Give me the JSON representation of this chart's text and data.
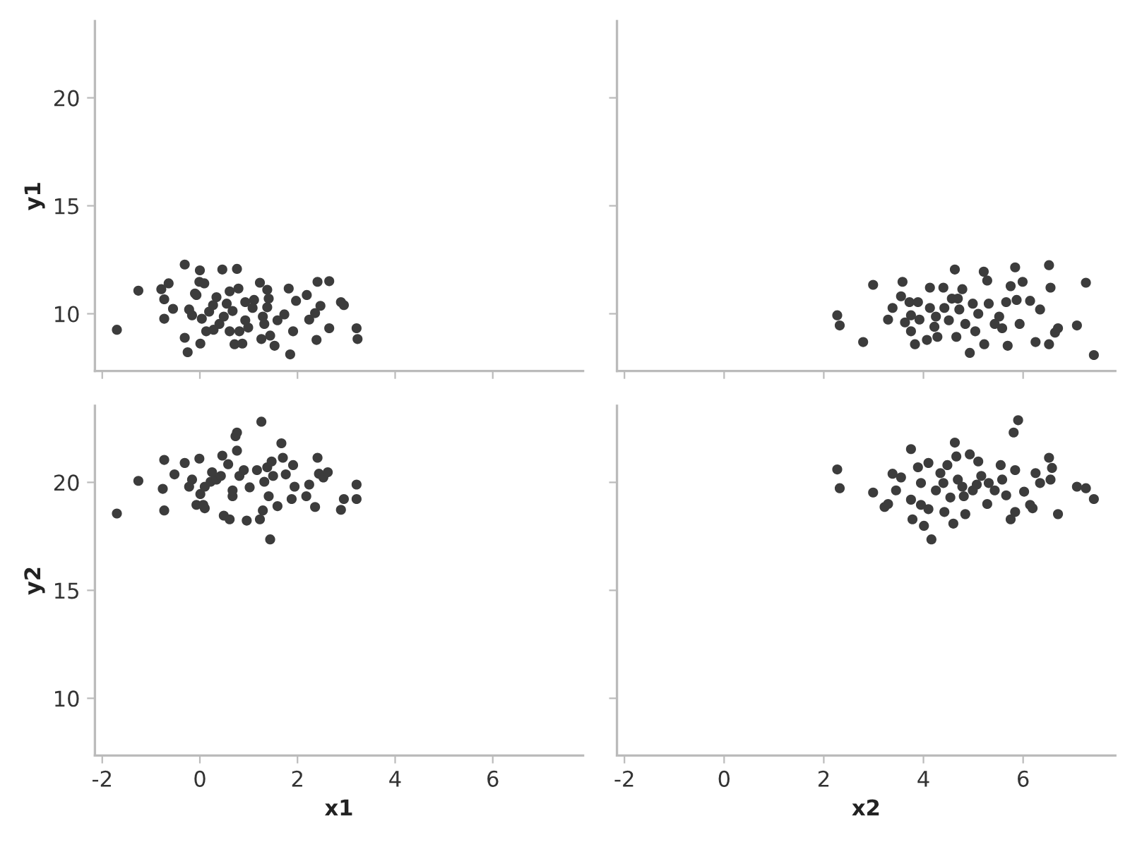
{
  "chart_data": [
    {
      "type": "scatter",
      "ylabel": "y1",
      "xlim": [
        -2.15,
        7.85
      ],
      "ylim": [
        7.35,
        23.55
      ],
      "xticks": [
        -2,
        0,
        2,
        4,
        6
      ],
      "yticks": [
        10,
        15,
        20
      ],
      "tick_labels": "y",
      "grid": false,
      "marker": "circle",
      "series": [
        {
          "color": "#3c3c3c",
          "x": [
            -1.7,
            -1.26,
            -0.79,
            -0.73,
            -0.64,
            -0.55,
            -0.73,
            -0.31,
            -0.25,
            -0.31,
            -0.16,
            0,
            -0.07,
            -0.01,
            0.09,
            0.04,
            0.01,
            0.13,
            0.19,
            0.27,
            0.34,
            0.46,
            0.4,
            0.49,
            0.55,
            0.61,
            0.67,
            0.71,
            0.76,
            0.79,
            0.87,
            0.81,
            0.93,
            0.99,
            0.93,
            1.11,
            1.23,
            1.29,
            1.26,
            1.38,
            1.41,
            1.38,
            1.44,
            1.53,
            1.59,
            1.73,
            1.82,
            1.85,
            1.91,
            1.97,
            2.19,
            2.24,
            2.36,
            2.39,
            2.41,
            2.47,
            2.65,
            2.65,
            2.89,
            2.95,
            3.21,
            3.23,
            1.32,
            1.08,
            0.61,
            0.28,
            -0.22,
            -0.1
          ],
          "values": [
            9.26,
            11.07,
            11.14,
            10.67,
            11.41,
            10.23,
            9.77,
            12.28,
            8.22,
            8.89,
            9.93,
            12.01,
            10.87,
            11.48,
            11.41,
            9.77,
            8.62,
            9.19,
            10.1,
            10.4,
            10.77,
            12.05,
            9.53,
            9.87,
            10.47,
            11.04,
            10.13,
            8.59,
            12.08,
            11.17,
            8.62,
            9.19,
            9.7,
            9.36,
            10.54,
            10.64,
            11.44,
            9.87,
            8.83,
            11.11,
            10.7,
            10.3,
            8.99,
            8.52,
            9.7,
            9.97,
            11.17,
            8.12,
            9.19,
            10.6,
            10.87,
            9.73,
            10.03,
            8.79,
            11.48,
            10.37,
            11.51,
            9.33,
            10.54,
            10.4,
            9.33,
            8.83,
            9.53,
            10.27,
            9.19,
            9.26,
            10.2,
            10.94
          ]
        }
      ]
    },
    {
      "type": "scatter",
      "xlim": [
        -2.15,
        7.85
      ],
      "ylim": [
        7.35,
        23.55
      ],
      "xticks": [
        -2,
        0,
        2,
        4,
        6
      ],
      "yticks": [
        10,
        15,
        20
      ],
      "tick_labels": false,
      "grid": false,
      "marker": "circle",
      "series": [
        {
          "color": "#3c3c3c",
          "x": [
            2.27,
            2.32,
            2.79,
            2.99,
            3.29,
            3.38,
            3.58,
            3.55,
            3.72,
            3.75,
            3.75,
            3.83,
            3.89,
            3.92,
            4.07,
            4.13,
            4.13,
            4.22,
            4.28,
            4.4,
            4.42,
            4.51,
            4.57,
            4.63,
            4.66,
            4.72,
            4.78,
            4.84,
            4.93,
            4.99,
            5.04,
            5.1,
            5.21,
            5.22,
            5.28,
            5.31,
            5.43,
            5.52,
            5.58,
            5.66,
            5.69,
            5.75,
            5.84,
            5.87,
            5.93,
            5.99,
            6.14,
            6.25,
            6.34,
            6.52,
            6.52,
            6.55,
            6.64,
            6.7,
            7.08,
            7.26,
            7.42,
            4.69,
            4.25,
            3.63
          ],
          "values": [
            9.93,
            9.46,
            8.69,
            11.34,
            9.73,
            10.27,
            11.48,
            10.81,
            10.54,
            9.93,
            9.19,
            8.59,
            10.54,
            9.73,
            8.79,
            11.21,
            10.27,
            9.4,
            8.93,
            11.21,
            10.27,
            9.7,
            10.7,
            12.05,
            8.93,
            10.2,
            11.14,
            9.53,
            8.19,
            10.47,
            9.19,
            10.0,
            11.95,
            8.59,
            11.54,
            10.47,
            9.53,
            9.87,
            9.33,
            10.54,
            8.52,
            11.28,
            12.15,
            10.64,
            9.53,
            11.48,
            10.6,
            8.69,
            10.2,
            12.25,
            8.59,
            11.21,
            9.13,
            9.33,
            9.46,
            11.44,
            8.09,
            10.7,
            9.87,
            9.6
          ]
        }
      ]
    },
    {
      "type": "scatter",
      "xlabel": "x1",
      "ylabel": "y2",
      "xlim": [
        -2.15,
        7.85
      ],
      "ylim": [
        7.35,
        23.55
      ],
      "xticks": [
        -2,
        0,
        2,
        4,
        6
      ],
      "yticks": [
        10,
        15,
        20
      ],
      "grid": false,
      "marker": "circle",
      "series": [
        {
          "color": "#3c3c3c",
          "x": [
            -1.7,
            -1.26,
            -0.76,
            -0.73,
            -0.73,
            -0.52,
            -0.31,
            -0.22,
            -0.16,
            -0.07,
            -0.01,
            0.01,
            0.1,
            0.1,
            0.22,
            0.34,
            0.43,
            0.46,
            0.49,
            0.58,
            0.61,
            0.67,
            0.67,
            0.73,
            0.76,
            0.76,
            0.81,
            0.9,
            0.96,
            1.02,
            1.17,
            1.26,
            1.23,
            1.29,
            1.32,
            1.38,
            1.41,
            1.44,
            1.5,
            1.59,
            1.67,
            1.7,
            1.76,
            1.88,
            1.91,
            1.94,
            2.18,
            2.24,
            2.36,
            2.41,
            2.44,
            2.53,
            2.62,
            2.89,
            2.95,
            3.21,
            3.21,
            0.25,
            0.07,
            1.47
          ],
          "values": [
            18.56,
            20.07,
            19.7,
            18.7,
            21.04,
            20.37,
            20.9,
            19.8,
            20.13,
            18.96,
            21.1,
            19.46,
            18.8,
            19.8,
            20.03,
            20.13,
            20.3,
            21.24,
            18.46,
            20.84,
            18.29,
            19.36,
            19.63,
            22.14,
            22.31,
            21.47,
            20.3,
            20.57,
            18.23,
            19.77,
            20.57,
            22.81,
            18.29,
            18.7,
            20.03,
            20.7,
            19.36,
            17.36,
            20.3,
            18.9,
            21.81,
            21.14,
            20.37,
            19.23,
            20.8,
            19.8,
            19.36,
            19.9,
            18.86,
            21.14,
            20.4,
            20.23,
            20.47,
            18.73,
            19.23,
            19.9,
            19.23,
            20.47,
            18.96,
            20.97
          ]
        }
      ]
    },
    {
      "type": "scatter",
      "xlabel": "x2",
      "xlim": [
        -2.15,
        7.85
      ],
      "ylim": [
        7.35,
        23.55
      ],
      "xticks": [
        -2,
        0,
        2,
        4,
        6
      ],
      "yticks": [
        10,
        15,
        20
      ],
      "tick_labels": "x",
      "grid": false,
      "marker": "circle",
      "series": [
        {
          "color": "#3c3c3c",
          "x": [
            2.27,
            2.32,
            2.99,
            3.22,
            3.29,
            3.38,
            3.55,
            3.75,
            3.75,
            3.78,
            3.89,
            3.95,
            4.01,
            4.1,
            4.1,
            4.16,
            4.25,
            4.34,
            4.42,
            4.48,
            4.54,
            4.6,
            4.63,
            4.66,
            4.69,
            4.78,
            4.81,
            4.84,
            4.93,
            4.99,
            5.1,
            5.16,
            5.28,
            5.31,
            5.43,
            5.55,
            5.58,
            5.66,
            5.75,
            5.81,
            5.84,
            5.9,
            6.02,
            6.14,
            6.19,
            6.25,
            6.34,
            6.52,
            6.55,
            6.58,
            6.7,
            7.08,
            7.26,
            7.42,
            3.95,
            4.4,
            5.07,
            5.84,
            3.45
          ],
          "values": [
            20.6,
            19.73,
            19.53,
            18.86,
            19.0,
            20.4,
            20.23,
            21.54,
            19.2,
            18.29,
            20.7,
            18.96,
            17.99,
            20.9,
            18.76,
            17.36,
            19.63,
            20.43,
            18.63,
            20.8,
            19.3,
            18.09,
            21.84,
            21.2,
            20.13,
            19.8,
            19.36,
            18.53,
            21.3,
            19.63,
            20.97,
            20.3,
            19.0,
            19.97,
            19.63,
            20.8,
            20.13,
            19.4,
            18.29,
            22.31,
            20.57,
            22.88,
            19.57,
            18.96,
            18.8,
            20.43,
            19.97,
            21.14,
            20.13,
            20.67,
            18.53,
            19.8,
            19.73,
            19.23,
            19.97,
            19.97,
            19.9,
            18.63,
            19.63
          ]
        }
      ]
    }
  ]
}
